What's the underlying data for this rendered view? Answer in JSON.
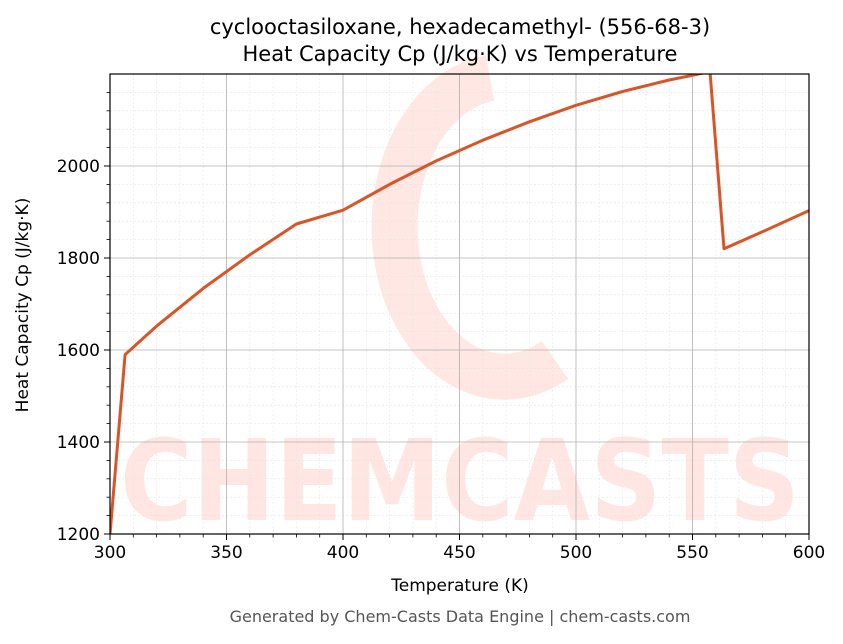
{
  "title_line1": "cyclooctasiloxane, hexadecamethyl- (556-68-3)",
  "title_line2": "Heat Capacity Cp (J/kg·K) vs Temperature",
  "footer": "Generated by Chem-Casts Data Engine | chem-casts.com",
  "watermark_text": "CHEMCASTS",
  "chart_data": {
    "type": "line",
    "title": "cyclooctasiloxane, hexadecamethyl- (556-68-3)\nHeat Capacity Cp (J/kg·K) vs Temperature",
    "xlabel": "Temperature (K)",
    "ylabel": "Heat Capacity Cp (J/kg·K)",
    "xlim": [
      300,
      600
    ],
    "ylim": [
      1200,
      2200
    ],
    "xticks": [
      300,
      350,
      400,
      450,
      500,
      550,
      600
    ],
    "yticks": [
      1200,
      1400,
      1600,
      1800,
      2000
    ],
    "grid": true,
    "line_color": "#d95528",
    "series": [
      {
        "x": [
          300,
          306.5,
          320,
          340,
          360,
          380,
          400,
          420,
          440,
          460,
          480,
          500,
          520,
          540,
          557.5,
          563.5,
          580,
          600
        ],
        "y": [
          1200,
          1590,
          1652,
          1734,
          1807,
          1874,
          1904,
          1960,
          2011,
          2056,
          2096,
          2132,
          2162,
          2187,
          2205,
          1820,
          1857,
          1903
        ]
      }
    ]
  }
}
